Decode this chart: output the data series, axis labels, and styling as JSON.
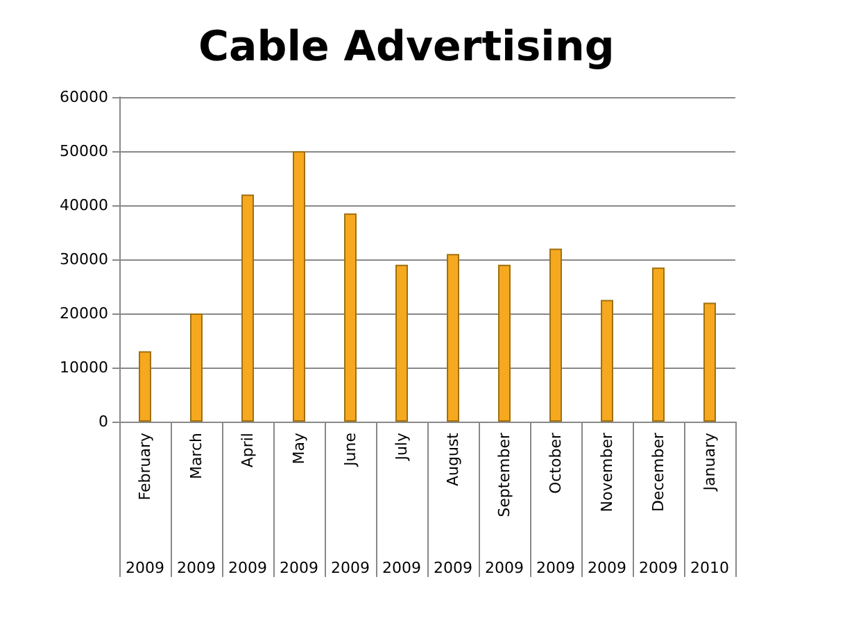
{
  "chart_data": {
    "type": "bar",
    "title": "Cable Advertising",
    "categories": [
      "February 2009",
      "March 2009",
      "April 2009",
      "May 2009",
      "June 2009",
      "July 2009",
      "August 2009",
      "September 2009",
      "October 2009",
      "November 2009",
      "December 2009",
      "January 2010"
    ],
    "values": [
      13000,
      20000,
      42000,
      50000,
      38500,
      29000,
      31000,
      29000,
      32000,
      22500,
      28500,
      22000
    ],
    "color": "#f6a81f",
    "ylim": [
      0,
      60000
    ],
    "yticks": [
      0,
      10000,
      20000,
      30000,
      40000,
      50000,
      60000
    ],
    "grid": "y"
  }
}
